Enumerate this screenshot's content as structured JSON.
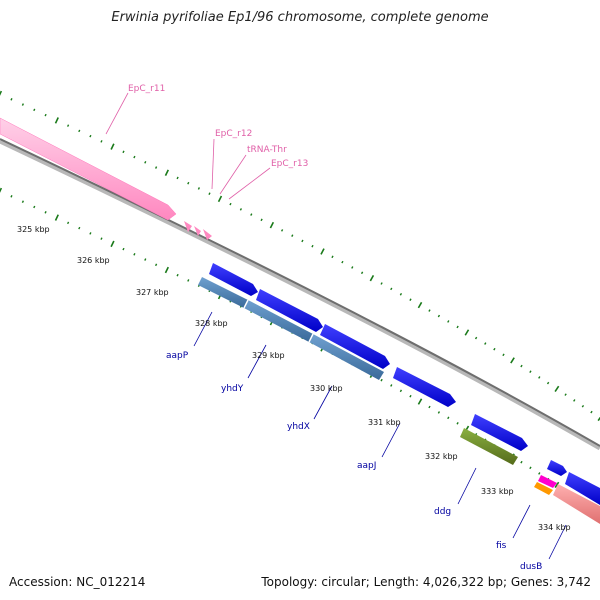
{
  "title": "Erwinia pyrifoliae Ep1/96 chromosome, complete genome",
  "accession": "Accession: NC_012214",
  "summary": "Topology: circular; Length: 4,026,322 bp; Genes: 3,742",
  "kbp_ticks": [
    "325 kbp",
    "326 kbp",
    "327 kbp",
    "328 kbp",
    "329 kbp",
    "330 kbp",
    "331 kbp",
    "332 kbp",
    "333 kbp",
    "334 kbp"
  ],
  "rna_labels": [
    "EpC_r11",
    "EpC_r12",
    "tRNA-Thr",
    "EpC_r13"
  ],
  "gene_labels": [
    "aapP",
    "yhdY",
    "yhdX",
    "aapJ",
    "ddg",
    "fis",
    "dusB"
  ],
  "colors": {
    "backbone": "#7a7a7a",
    "ticks": "#1a7a1a",
    "rrna": "#ff99cc",
    "cds": "#0000ee",
    "operon_cds": "#4a80b8",
    "ddg": "#6b8e23",
    "dusB": "#f08080",
    "fis_magenta": "#ff00cc",
    "fis_orange": "#ff9900",
    "label_blue": "#0000a0",
    "label_pink": "#e060a8"
  }
}
